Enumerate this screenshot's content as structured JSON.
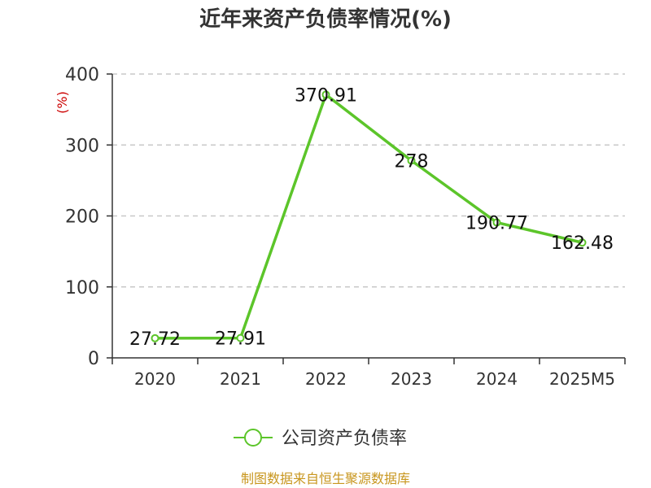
{
  "chart_data": {
    "type": "line",
    "title": "近年来资产负债率情况(%)",
    "ylabel": "(%)",
    "xlabel": "",
    "categories": [
      "2020",
      "2021",
      "2022",
      "2023",
      "2024",
      "2025M5"
    ],
    "series": [
      {
        "name": "公司资产负债率",
        "values": [
          27.72,
          27.91,
          370.91,
          278,
          190.77,
          162.48
        ]
      }
    ],
    "data_labels": [
      "27.72",
      "27.91",
      "370.91",
      "278",
      "190.77",
      "162.48"
    ],
    "yticks": [
      "0",
      "100",
      "200",
      "300",
      "400"
    ],
    "ylim": [
      0,
      400
    ],
    "grid": "horizontal dashed",
    "legend": "bottom-center"
  },
  "colors": {
    "series": "#5cc52a",
    "ylabel": "#cc0000",
    "source": "#c8961e",
    "grid": "#c8c8c8"
  },
  "source": "制图数据来自恒生聚源数据库"
}
